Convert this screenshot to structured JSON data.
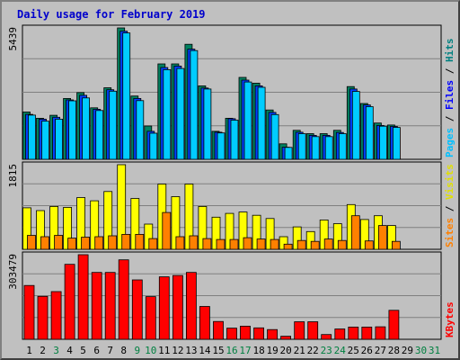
{
  "chart_data": {
    "title": "Daily usage for February 2019",
    "type": "bar",
    "days": [
      "1",
      "2",
      "3",
      "4",
      "5",
      "6",
      "7",
      "8",
      "9",
      "10",
      "11",
      "12",
      "13",
      "14",
      "15",
      "16",
      "17",
      "18",
      "19",
      "20",
      "21",
      "22",
      "23",
      "24",
      "25",
      "26",
      "27",
      "28",
      "29",
      "30",
      "31"
    ],
    "day_colors": [
      "#000000",
      "#000000",
      "#008040",
      "#000000",
      "#000000",
      "#000000",
      "#000000",
      "#000000",
      "#008040",
      "#008040",
      "#000000",
      "#000000",
      "#000000",
      "#000000",
      "#000000",
      "#008040",
      "#008040",
      "#000000",
      "#000000",
      "#000000",
      "#000000",
      "#000000",
      "#008040",
      "#008040",
      "#000000",
      "#000000",
      "#000000",
      "#000000",
      "#000000",
      "#008040",
      "#008040"
    ],
    "panels": [
      {
        "id": "hits-files-pages",
        "ymax_label": "5439",
        "ymax": 5439,
        "legend": [
          {
            "text": "Pages",
            "color": "#00c0ff"
          },
          {
            "text": "Files",
            "color": "#0000ff"
          },
          {
            "text": "Hits",
            "color": "#008080"
          }
        ],
        "series": [
          {
            "name": "Hits",
            "color": "#008060",
            "values": [
              1960,
              1700,
              1820,
              2520,
              2760,
              2130,
              2960,
              5439,
              2620,
              1380,
              3950,
              3950,
              4760,
              3040,
              1160,
              1700,
              3390,
              3150,
              2040,
              640,
              1200,
              1060,
              1060,
              1200,
              3010,
              2310,
              1500,
              1420,
              0,
              0,
              0
            ]
          },
          {
            "name": "Files",
            "color": "#0040ff",
            "values": [
              1860,
              1660,
              1740,
              2460,
              2650,
              2070,
              2880,
              5300,
              2520,
              1160,
              3800,
              3860,
              4560,
              2950,
              1120,
              1680,
              3280,
              3040,
              1940,
              500,
              1120,
              990,
              990,
              1110,
              2910,
              2250,
              1400,
              1360,
              0,
              0,
              0
            ]
          },
          {
            "name": "Pages",
            "color": "#00ccff",
            "values": [
              1830,
              1580,
              1660,
              2420,
              2540,
              2020,
              2820,
              5230,
              2430,
              1080,
              3710,
              3760,
              4500,
              2910,
              1090,
              1620,
              3200,
              2980,
              1850,
              490,
              1060,
              940,
              940,
              1060,
              2810,
              2180,
              1370,
              1320,
              0,
              0,
              0
            ]
          }
        ]
      },
      {
        "id": "visits-sites",
        "ymax_label": "1815",
        "ymax": 1815,
        "legend": [
          {
            "text": "Sites",
            "color": "#ff8000"
          },
          {
            "text": "Visits",
            "color": "#e0e000"
          }
        ],
        "series": [
          {
            "name": "Visits",
            "color": "#ffff00",
            "values": [
              890,
              830,
              920,
              900,
              1110,
              1040,
              1240,
              1815,
              1090,
              540,
              1400,
              1130,
              1400,
              920,
              690,
              770,
              800,
              730,
              660,
              270,
              480,
              380,
              630,
              550,
              960,
              640,
              720,
              510,
              0,
              0,
              0
            ]
          },
          {
            "name": "Sites",
            "color": "#ff8000",
            "values": [
              300,
              270,
              300,
              240,
              260,
              270,
              290,
              320,
              320,
              230,
              790,
              270,
              290,
              230,
              210,
              210,
              250,
              220,
              210,
              110,
              190,
              170,
              220,
              190,
              720,
              180,
              510,
              170,
              0,
              0,
              0
            ]
          }
        ]
      },
      {
        "id": "kbytes",
        "ymax_label": "303479",
        "ymax": 303479,
        "legend": [
          {
            "text": "KBytes",
            "color": "#ff0000"
          }
        ],
        "series": [
          {
            "name": "KBytes",
            "color": "#ff0000",
            "values": [
              193000,
              154000,
              171000,
              269000,
              303479,
              240000,
              240000,
              285000,
              213000,
              153000,
              224000,
              229000,
              240000,
              118000,
              64000,
              40000,
              47000,
              41000,
              35000,
              11000,
              63000,
              63000,
              17000,
              37000,
              44000,
              44000,
              45000,
              104000,
              0,
              0,
              0
            ]
          }
        ]
      }
    ]
  }
}
